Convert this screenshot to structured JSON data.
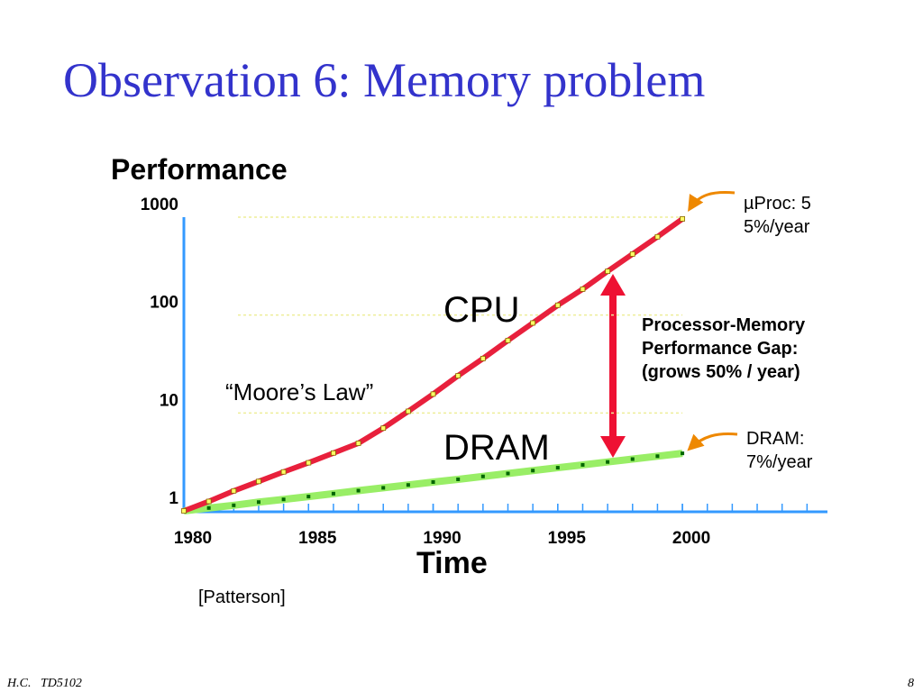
{
  "slide": {
    "title": "Observation 6: Memory problem",
    "footer": "H.C.   TD5102",
    "page": "8"
  },
  "chart_data": {
    "type": "line",
    "ylabel": "Performance",
    "xlabel": "Time",
    "log_y": true,
    "grid": true,
    "x": [
      1980,
      1981,
      1982,
      1983,
      1984,
      1985,
      1986,
      1987,
      1988,
      1989,
      1990,
      1991,
      1992,
      1993,
      1994,
      1995,
      1996,
      1997,
      1998,
      1999,
      2000
    ],
    "series": [
      {
        "name": "CPU",
        "color": "#e8203c",
        "marker_color": "#ffff66",
        "values": [
          1,
          1.25,
          1.6,
          2,
          2.5,
          3.1,
          3.9,
          4.9,
          7,
          10.4,
          15.6,
          24,
          36,
          55,
          83,
          126,
          184,
          280,
          420,
          630,
          960
        ]
      },
      {
        "name": "DRAM",
        "color": "#99ee66",
        "marker_color": "#006600",
        "values": [
          1,
          1.07,
          1.14,
          1.23,
          1.31,
          1.4,
          1.5,
          1.61,
          1.72,
          1.84,
          1.97,
          2.1,
          2.25,
          2.41,
          2.58,
          2.76,
          2.95,
          3.16,
          3.38,
          3.62,
          3.87
        ]
      }
    ],
    "xlim": [
      1980,
      2006
    ],
    "xticks": [
      1980,
      1985,
      1990,
      1995,
      2000
    ],
    "ylim": [
      1,
      1000
    ],
    "yticks": [
      1,
      10,
      100,
      1000
    ],
    "annotations": [
      "“Moore’s Law”",
      "[Patterson]",
      "µProc: 55%/year",
      [
        "Processor-Memory",
        "Performance Gap:",
        "(grows 50% / year)"
      ],
      [
        "DRAM:",
        "7%/year"
      ]
    ]
  }
}
